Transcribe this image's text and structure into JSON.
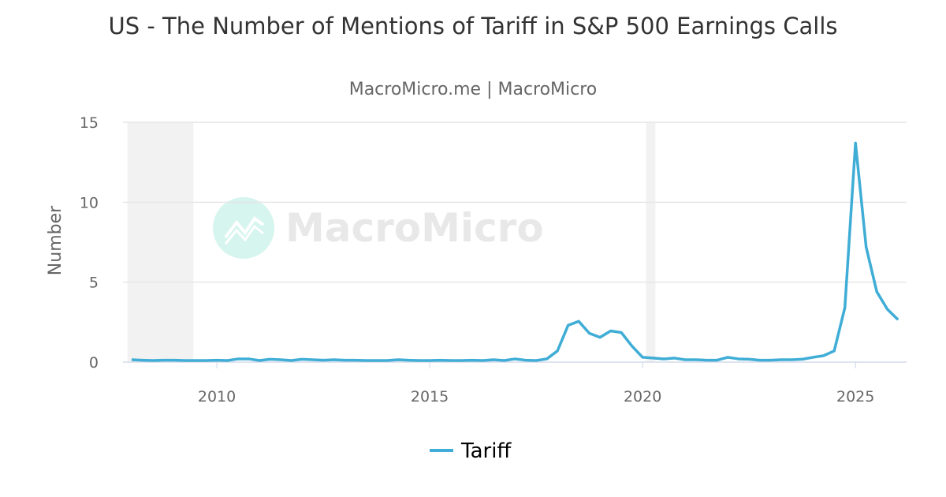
{
  "chart_data": {
    "type": "line",
    "title": "US - The Number of Mentions of Tariff in S&P 500 Earnings Calls",
    "subtitle": "MacroMicro.me | MacroMicro",
    "watermark": "MacroMicro",
    "y_label": "Number",
    "x": [
      2008,
      2008.25,
      2008.5,
      2008.75,
      2009,
      2009.25,
      2009.5,
      2009.75,
      2010,
      2010.25,
      2010.5,
      2010.75,
      2011,
      2011.25,
      2011.5,
      2011.75,
      2012,
      2012.25,
      2012.5,
      2012.75,
      2013,
      2013.25,
      2013.5,
      2013.75,
      2014,
      2014.25,
      2014.5,
      2014.75,
      2015,
      2015.25,
      2015.5,
      2015.75,
      2016,
      2016.25,
      2016.5,
      2016.75,
      2017,
      2017.25,
      2017.5,
      2017.75,
      2018,
      2018.25,
      2018.5,
      2018.75,
      2019,
      2019.25,
      2019.5,
      2019.75,
      2020,
      2020.25,
      2020.5,
      2020.75,
      2021,
      2021.25,
      2021.5,
      2021.75,
      2022,
      2022.25,
      2022.5,
      2022.75,
      2023,
      2023.25,
      2023.5,
      2023.75,
      2024,
      2024.25,
      2024.5,
      2024.75,
      2025,
      2025.25,
      2025.5,
      2025.75,
      2026
    ],
    "series": [
      {
        "name": "Tariff",
        "color": "#3fadd6",
        "values": [
          0.15,
          0.12,
          0.1,
          0.12,
          0.12,
          0.1,
          0.1,
          0.1,
          0.12,
          0.1,
          0.2,
          0.2,
          0.1,
          0.18,
          0.15,
          0.1,
          0.18,
          0.15,
          0.12,
          0.15,
          0.12,
          0.12,
          0.1,
          0.1,
          0.1,
          0.15,
          0.12,
          0.1,
          0.1,
          0.12,
          0.1,
          0.1,
          0.12,
          0.1,
          0.15,
          0.1,
          0.2,
          0.12,
          0.1,
          0.2,
          0.7,
          2.3,
          2.55,
          1.8,
          1.55,
          1.95,
          1.85,
          1.0,
          0.3,
          0.25,
          0.2,
          0.25,
          0.15,
          0.15,
          0.12,
          0.12,
          0.3,
          0.2,
          0.18,
          0.12,
          0.12,
          0.15,
          0.15,
          0.18,
          0.3,
          0.4,
          0.7,
          3.4,
          13.7,
          7.2,
          4.4,
          3.3,
          2.65
        ]
      }
    ],
    "shaded_regions": [
      [
        2007.9,
        2009.45
      ],
      [
        2020.08,
        2020.3
      ]
    ],
    "xlim": [
      2007.87,
      2026.2
    ],
    "ylim": [
      0,
      15
    ],
    "xticks": [
      2010,
      2015,
      2020,
      2025
    ],
    "yticks": [
      0,
      5,
      10,
      15
    ],
    "grid": true,
    "legend": "bottom"
  }
}
